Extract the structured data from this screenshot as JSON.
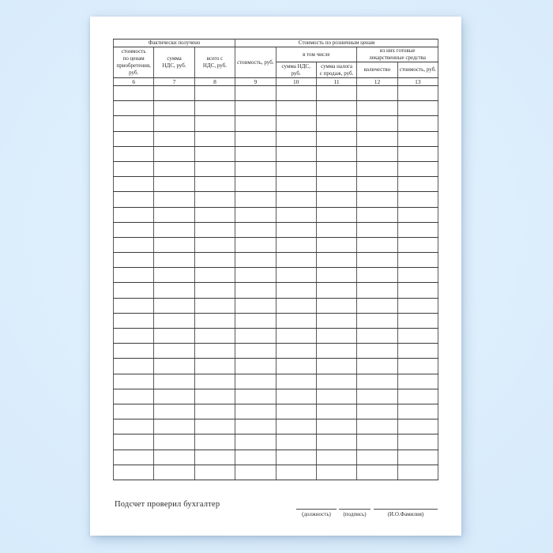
{
  "colors": {
    "background": "#d7ebfc",
    "page": "#ffffff",
    "grid_line": "#3a3a3a",
    "text": "#2a2a2a"
  },
  "table": {
    "groups": {
      "actually_received": "Фактически получено",
      "retail_cost": "Стоимость по розничным ценам",
      "including": "в том числе",
      "ready_medicines": "из них готовые\nлекарственные средства"
    },
    "columns": [
      {
        "number": "6",
        "label": "стоимость\nпо ценам\nприобретения,\nруб."
      },
      {
        "number": "7",
        "label": "сумма\nНДС, руб."
      },
      {
        "number": "8",
        "label": "всего с\nНДС, руб."
      },
      {
        "number": "9",
        "label": "стоимость, руб."
      },
      {
        "number": "10",
        "label": "сумма НДС,\nруб."
      },
      {
        "number": "11",
        "label": "сумма налога\nс продаж, руб."
      },
      {
        "number": "12",
        "label": "количество"
      },
      {
        "number": "13",
        "label": "стоимость, руб."
      }
    ],
    "blank_row_count": 26
  },
  "footer": {
    "checked_by": "Подсчет проверил бухгалтер",
    "signatures": [
      {
        "label": "(должность)"
      },
      {
        "label": "(подпись)"
      },
      {
        "label": "(И.О.Фамилия)"
      }
    ]
  }
}
